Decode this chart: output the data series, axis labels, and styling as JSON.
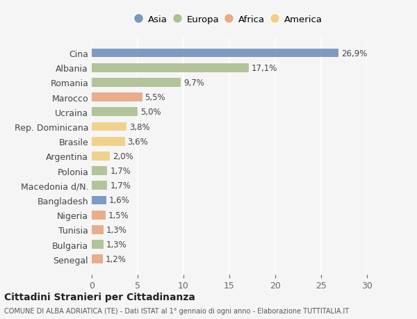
{
  "countries": [
    "Cina",
    "Albania",
    "Romania",
    "Marocco",
    "Ucraina",
    "Rep. Dominicana",
    "Brasile",
    "Argentina",
    "Polonia",
    "Macedonia d/N.",
    "Bangladesh",
    "Nigeria",
    "Tunisia",
    "Bulgaria",
    "Senegal"
  ],
  "values": [
    26.9,
    17.1,
    9.7,
    5.5,
    5.0,
    3.8,
    3.6,
    2.0,
    1.7,
    1.7,
    1.6,
    1.5,
    1.3,
    1.3,
    1.2
  ],
  "labels": [
    "26,9%",
    "17,1%",
    "9,7%",
    "5,5%",
    "5,0%",
    "3,8%",
    "3,6%",
    "2,0%",
    "1,7%",
    "1,7%",
    "1,6%",
    "1,5%",
    "1,3%",
    "1,3%",
    "1,2%"
  ],
  "continents": [
    "Asia",
    "Europa",
    "Europa",
    "Africa",
    "Europa",
    "America",
    "America",
    "America",
    "Europa",
    "Europa",
    "Asia",
    "Africa",
    "Africa",
    "Europa",
    "Africa"
  ],
  "colors": {
    "Asia": "#6b8cba",
    "Europa": "#a8bb8a",
    "Africa": "#e8a07a",
    "America": "#f0cc7a"
  },
  "legend_order": [
    "Asia",
    "Europa",
    "Africa",
    "America"
  ],
  "bg_color": "#f5f5f5",
  "title": "Cittadini Stranieri per Cittadinanza",
  "subtitle": "COMUNE DI ALBA ADRIATICA (TE) - Dati ISTAT al 1° gennaio di ogni anno - Elaborazione TUTTITALIA.IT",
  "xlim": [
    0,
    30
  ],
  "xticks": [
    0,
    5,
    10,
    15,
    20,
    25,
    30
  ]
}
